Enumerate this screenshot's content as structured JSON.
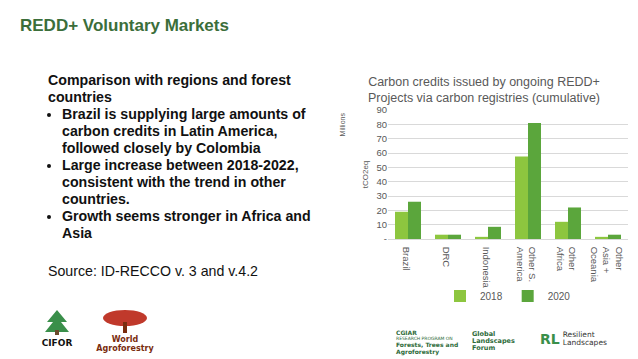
{
  "slide": {
    "title": "REDD+ Voluntary Markets",
    "heading": "Comparison with regions and forest countries",
    "bullets": [
      "Brazil is supplying large amounts of carbon credits in Latin America, followed closely by Colombia",
      "Large increase between 2018-2022, consistent with the trend in other countries.",
      "Growth seems stronger in Africa and Asia"
    ],
    "source": "Source: ID-RECCO v. 3 and v.4.2",
    "logos": {
      "cifor": "CIFOR",
      "world_agroforestry": "World Agroforestry",
      "cgiar": "CGIAR",
      "fta_heading": "RESEARCH PROGRAM ON",
      "fta": "Forests, Trees and Agroforestry",
      "glf": "Global Landscapes Forum",
      "rl_mark": "RL",
      "rl": "Resilient Landscapes"
    }
  },
  "chart_data": {
    "type": "bar",
    "title": "Carbon credits issued by ongoing REDD+ Projects via carbon registries (cumulative)",
    "y_label": "tCO2eq",
    "y_unit": "Millions",
    "categories": [
      "Brazil",
      "DRC",
      "Indonesia",
      "Other S. America",
      "Other Africa",
      "Other Asia + Oceania"
    ],
    "series": [
      {
        "name": "2018",
        "color": "#8dc63f",
        "values": [
          19,
          3,
          1.5,
          57.5,
          12,
          1.5
        ]
      },
      {
        "name": "2020",
        "color": "#5ba63c",
        "values": [
          26,
          3,
          8.5,
          81,
          22,
          3
        ]
      }
    ],
    "ylim": [
      0,
      90
    ],
    "yticks": [
      {
        "value": 0,
        "label": "-"
      },
      10,
      20,
      30,
      40,
      50,
      60,
      70,
      80,
      90
    ],
    "grid": true,
    "legend": "bottom"
  }
}
